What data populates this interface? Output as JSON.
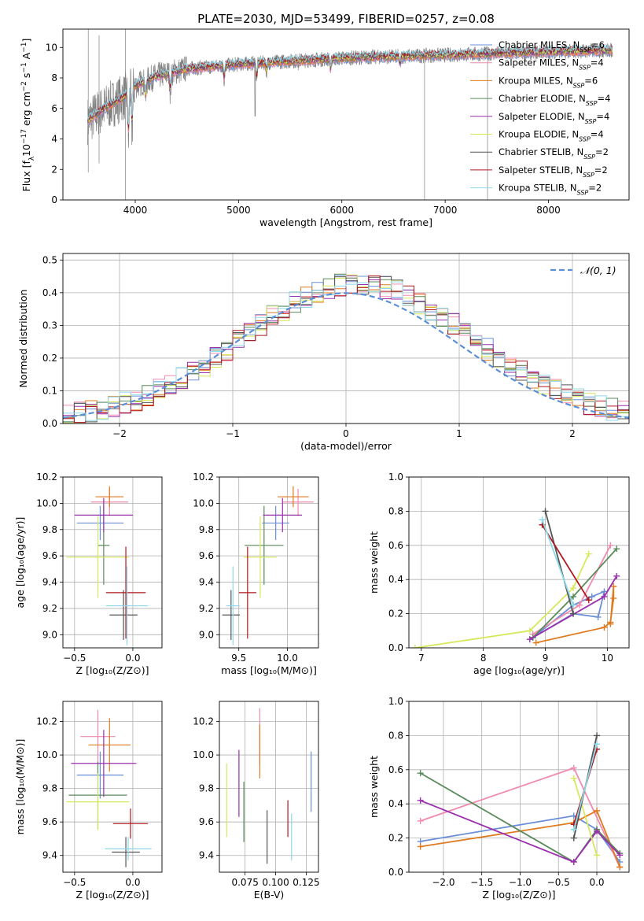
{
  "figure": {
    "title": "PLATE=2030, MJD=53499, FIBERID=0257, z=0.08"
  },
  "colors": {
    "chabrier_miles": "#6b8fd6",
    "salpeter_miles": "#f08ab0",
    "kroupa_miles": "#e07b20",
    "chabrier_elodie": "#5a8a5a",
    "salpeter_elodie": "#9b2fae",
    "kroupa_elodie": "#d6e85c",
    "chabrier_stelib": "#555555",
    "salpeter_stelib": "#b0171f",
    "kroupa_stelib": "#8dd8e8",
    "data": "#808080",
    "normal": "#5b8fd6"
  },
  "chart_data": [
    {
      "id": "spectrum",
      "type": "line",
      "xlabel": "wavelength [Angstrom, rest frame]",
      "ylabel": "Flux [f$_\\lambda$10$^{-17}$ erg cm$^{-2}$ s$^{-1}$ A$^{-1}$]",
      "xlim": [
        3300,
        8780
      ],
      "ylim": [
        0,
        11.2
      ],
      "xticks": [
        4000,
        5000,
        6000,
        7000,
        8000
      ],
      "yticks": [
        0,
        2,
        4,
        6,
        8,
        10
      ],
      "legend": [
        {
          "label": "Chabrier MILES, N",
          "sub": "SSP",
          "tail": "=6"
        },
        {
          "label": "Salpeter MILES, N",
          "sub": "SSP",
          "tail": "=4"
        },
        {
          "label": "Kroupa MILES, N",
          "sub": "SSP",
          "tail": "=6"
        },
        {
          "label": "Chabrier ELODIE, N",
          "sub": "SSP",
          "tail": "=4"
        },
        {
          "label": "Salpeter ELODIE, N",
          "sub": "SSP",
          "tail": "=4"
        },
        {
          "label": "Kroupa ELODIE, N",
          "sub": "SSP",
          "tail": "=4"
        },
        {
          "label": "Chabrier STELIB, N",
          "sub": "SSP",
          "tail": "=2"
        },
        {
          "label": "Salpeter STELIB, N",
          "sub": "SSP",
          "tail": "=2"
        },
        {
          "label": "Kroupa STELIB, N",
          "sub": "SSP",
          "tail": "=2"
        }
      ],
      "continuum": [
        [
          3540,
          5.2
        ],
        [
          3700,
          6.0
        ],
        [
          3900,
          6.8
        ],
        [
          4000,
          7.5
        ],
        [
          4200,
          8.1
        ],
        [
          4500,
          8.6
        ],
        [
          5000,
          8.9
        ],
        [
          5500,
          9.1
        ],
        [
          6000,
          9.3
        ],
        [
          6500,
          9.4
        ],
        [
          7000,
          9.5
        ],
        [
          7500,
          9.6
        ],
        [
          8000,
          9.7
        ],
        [
          8500,
          9.8
        ]
      ]
    },
    {
      "id": "residuals",
      "type": "line",
      "xlabel": "(data-model)/error",
      "ylabel": "Normed distribution",
      "xlim": [
        -2.5,
        2.5
      ],
      "ylim": [
        0,
        0.52
      ],
      "xticks": [
        -2,
        -1,
        0,
        1,
        2
      ],
      "yticks": [
        0.0,
        0.1,
        0.2,
        0.3,
        0.4,
        0.5
      ],
      "legend": "𝒩(0, 1)",
      "bin_width": 0.1
    },
    {
      "id": "z_age",
      "type": "scatter",
      "xlabel": "Z [log₁₀(Z/Z⊙)]",
      "ylabel": "age  [log₁₀(age/yr)]",
      "xlim": [
        -0.6,
        0.25
      ],
      "ylim": [
        8.9,
        10.2
      ],
      "xticks": [
        -0.5,
        0.0
      ],
      "yticks": [
        9.0,
        9.2,
        9.4,
        9.6,
        9.8,
        10.0,
        10.2
      ],
      "points": [
        {
          "model": "chabrier_miles",
          "x": -0.28,
          "xerr": 0.2,
          "y": 9.85,
          "yerr": 0.13
        },
        {
          "model": "salpeter_miles",
          "x": -0.2,
          "xerr": 0.16,
          "y": 10.01,
          "yerr": 0.1
        },
        {
          "model": "kroupa_miles",
          "x": -0.2,
          "xerr": 0.12,
          "y": 10.05,
          "yerr": 0.08
        },
        {
          "model": "chabrier_elodie",
          "x": -0.25,
          "xerr": 0.05,
          "y": 9.68,
          "yerr": 0.3
        },
        {
          "model": "salpeter_elodie",
          "x": -0.25,
          "xerr": 0.25,
          "y": 9.91,
          "yerr": 0.13
        },
        {
          "model": "kroupa_elodie",
          "x": -0.3,
          "xerr": 0.27,
          "y": 9.59,
          "yerr": 0.31
        },
        {
          "model": "chabrier_stelib",
          "x": -0.08,
          "xerr": 0.12,
          "y": 9.15,
          "yerr": 0.19
        },
        {
          "model": "salpeter_stelib",
          "x": -0.06,
          "xerr": 0.17,
          "y": 9.32,
          "yerr": 0.35
        },
        {
          "model": "kroupa_stelib",
          "x": -0.05,
          "xerr": 0.18,
          "y": 9.22,
          "yerr": 0.3
        }
      ]
    },
    {
      "id": "mass_age",
      "type": "scatter",
      "xlabel": "mass [log₁₀(M/M⊙)]",
      "ylabel": "",
      "xlim": [
        9.3,
        10.32
      ],
      "ylim": [
        8.9,
        10.2
      ],
      "xticks": [
        9.5,
        10.0
      ],
      "yticks": [
        9.0,
        9.2,
        9.4,
        9.6,
        9.8,
        10.0,
        10.2
      ],
      "points": [
        {
          "model": "chabrier_miles",
          "x": 9.88,
          "xerr": 0.14,
          "y": 9.85,
          "yerr": 0.13
        },
        {
          "model": "salpeter_miles",
          "x": 10.11,
          "xerr": 0.16,
          "y": 10.01,
          "yerr": 0.1
        },
        {
          "model": "kroupa_miles",
          "x": 10.06,
          "xerr": 0.16,
          "y": 10.05,
          "yerr": 0.08
        },
        {
          "model": "chabrier_elodie",
          "x": 9.76,
          "xerr": 0.2,
          "y": 9.68,
          "yerr": 0.3
        },
        {
          "model": "salpeter_elodie",
          "x": 9.95,
          "xerr": 0.2,
          "y": 9.91,
          "yerr": 0.13
        },
        {
          "model": "kroupa_elodie",
          "x": 9.72,
          "xerr": 0.17,
          "y": 9.59,
          "yerr": 0.31
        },
        {
          "model": "chabrier_stelib",
          "x": 9.42,
          "xerr": 0.09,
          "y": 9.15,
          "yerr": 0.19
        },
        {
          "model": "salpeter_stelib",
          "x": 9.59,
          "xerr": 0.09,
          "y": 9.32,
          "yerr": 0.35
        },
        {
          "model": "kroupa_stelib",
          "x": 9.44,
          "xerr": 0.07,
          "y": 9.22,
          "yerr": 0.3
        }
      ]
    },
    {
      "id": "age_weight",
      "type": "line",
      "xlabel": "age  [log₁₀(age/yr)]",
      "ylabel": "mass weight",
      "xlim": [
        6.8,
        10.35
      ],
      "ylim": [
        0,
        1
      ],
      "xticks": [
        7,
        8,
        9,
        10
      ],
      "yticks": [
        0.0,
        0.2,
        0.4,
        0.6,
        0.8,
        1.0
      ],
      "series": [
        {
          "model": "chabrier_miles",
          "x": [
            8.8,
            9.45,
            9.85,
            9.95,
            9.75,
            9.45,
            8.8
          ],
          "y": [
            0.06,
            0.2,
            0.18,
            0.33,
            0.3,
            0.25,
            0.06
          ]
        },
        {
          "model": "salpeter_miles",
          "x": [
            8.8,
            9.55,
            10.05
          ],
          "y": [
            0.08,
            0.25,
            0.6
          ]
        },
        {
          "model": "kroupa_miles",
          "x": [
            8.85,
            9.95,
            10.05,
            10.1,
            10.1,
            10.05
          ],
          "y": [
            0.03,
            0.12,
            0.15,
            0.29,
            0.36,
            0.14
          ]
        },
        {
          "model": "chabrier_elodie",
          "x": [
            8.8,
            9.45,
            10.15
          ],
          "y": [
            0.06,
            0.3,
            0.58
          ]
        },
        {
          "model": "salpeter_elodie",
          "x": [
            8.75,
            9.95,
            10.15
          ],
          "y": [
            0.05,
            0.3,
            0.42
          ]
        },
        {
          "model": "kroupa_elodie",
          "x": [
            6.9,
            8.75,
            9.45,
            9.7
          ],
          "y": [
            0.0,
            0.1,
            0.35,
            0.55
          ]
        },
        {
          "model": "chabrier_stelib",
          "x": [
            9.0,
            9.45
          ],
          "y": [
            0.8,
            0.2
          ]
        },
        {
          "model": "salpeter_stelib",
          "x": [
            8.95,
            9.7
          ],
          "y": [
            0.72,
            0.28
          ]
        },
        {
          "model": "kroupa_stelib",
          "x": [
            8.95,
            9.45
          ],
          "y": [
            0.75,
            0.25
          ]
        }
      ]
    },
    {
      "id": "z_mass",
      "type": "scatter",
      "xlabel": "Z [log₁₀(Z/Z⊙)]",
      "ylabel": "mass [log₁₀(M/M⊙)]",
      "xlim": [
        -0.6,
        0.25
      ],
      "ylim": [
        9.3,
        10.32
      ],
      "xticks": [
        -0.5,
        0.0
      ],
      "yticks": [
        9.4,
        9.6,
        9.8,
        10.0,
        10.2
      ],
      "points": [
        {
          "model": "chabrier_miles",
          "x": -0.28,
          "xerr": 0.2,
          "y": 9.88,
          "yerr": 0.14
        },
        {
          "model": "salpeter_miles",
          "x": -0.3,
          "xerr": 0.15,
          "y": 10.11,
          "yerr": 0.16
        },
        {
          "model": "kroupa_miles",
          "x": -0.2,
          "xerr": 0.18,
          "y": 10.06,
          "yerr": 0.16
        },
        {
          "model": "chabrier_elodie",
          "x": -0.3,
          "xerr": 0.25,
          "y": 9.76,
          "yerr": 0.2
        },
        {
          "model": "salpeter_elodie",
          "x": -0.25,
          "xerr": 0.28,
          "y": 9.95,
          "yerr": 0.2
        },
        {
          "model": "kroupa_elodie",
          "x": -0.3,
          "xerr": 0.27,
          "y": 9.72,
          "yerr": 0.17
        },
        {
          "model": "chabrier_stelib",
          "x": -0.06,
          "xerr": 0.12,
          "y": 9.42,
          "yerr": 0.09
        },
        {
          "model": "salpeter_stelib",
          "x": -0.02,
          "xerr": 0.15,
          "y": 9.59,
          "yerr": 0.09
        },
        {
          "model": "kroupa_stelib",
          "x": -0.04,
          "xerr": 0.2,
          "y": 9.44,
          "yerr": 0.07
        }
      ]
    },
    {
      "id": "ebv_mass",
      "type": "scatter",
      "xlabel": "E(B-V)",
      "ylabel": "",
      "xlim": [
        0.054,
        0.135
      ],
      "ylim": [
        9.3,
        10.32
      ],
      "xticks": [
        0.075,
        0.1,
        0.125
      ],
      "yticks": [
        9.4,
        9.6,
        9.8,
        10.0,
        10.2
      ],
      "tick_labels": [
        "0.075",
        "0.100",
        "0.125"
      ],
      "points": [
        {
          "model": "chabrier_miles",
          "x": 0.129,
          "y": 9.84,
          "yerr": 0.18
        },
        {
          "model": "salpeter_miles",
          "x": 0.087,
          "y": 10.11,
          "yerr": 0.17
        },
        {
          "model": "kroupa_miles",
          "x": 0.087,
          "y": 10.02,
          "yerr": 0.16
        },
        {
          "model": "chabrier_elodie",
          "x": 0.074,
          "y": 9.66,
          "yerr": 0.18
        },
        {
          "model": "salpeter_elodie",
          "x": 0.07,
          "y": 9.83,
          "yerr": 0.2
        },
        {
          "model": "kroupa_elodie",
          "x": 0.06,
          "y": 9.73,
          "yerr": 0.22
        },
        {
          "model": "chabrier_stelib",
          "x": 0.093,
          "y": 9.51,
          "yerr": 0.16
        },
        {
          "model": "salpeter_stelib",
          "x": 0.11,
          "y": 9.62,
          "yerr": 0.11
        },
        {
          "model": "kroupa_stelib",
          "x": 0.113,
          "y": 9.51,
          "yerr": 0.14
        }
      ]
    },
    {
      "id": "z_weight",
      "type": "line",
      "xlabel": "Z [log₁₀(Z/Z⊙)]",
      "ylabel": "mass weight",
      "xlim": [
        -2.45,
        0.42
      ],
      "ylim": [
        0,
        1
      ],
      "xticks": [
        -2.0,
        -1.5,
        -1.0,
        -0.5,
        0.0
      ],
      "yticks": [
        0.0,
        0.2,
        0.4,
        0.6,
        0.8,
        1.0
      ],
      "series": [
        {
          "model": "chabrier_miles",
          "x": [
            -2.3,
            -0.3,
            0.0,
            0.3
          ],
          "y": [
            0.18,
            0.33,
            0.25,
            0.06
          ]
        },
        {
          "model": "salpeter_miles",
          "x": [
            -2.3,
            -0.3,
            0.3
          ],
          "y": [
            0.3,
            0.61,
            0.03
          ]
        },
        {
          "model": "kroupa_miles",
          "x": [
            -2.3,
            -0.3,
            0.0,
            0.3
          ],
          "y": [
            0.15,
            0.29,
            0.36,
            0.03
          ]
        },
        {
          "model": "chabrier_elodie",
          "x": [
            -2.3,
            -0.3,
            0.0,
            0.3
          ],
          "y": [
            0.58,
            0.06,
            0.25,
            0.11
          ]
        },
        {
          "model": "salpeter_elodie",
          "x": [
            -2.3,
            -0.3,
            0.0,
            0.3
          ],
          "y": [
            0.42,
            0.06,
            0.24,
            0.1
          ]
        },
        {
          "model": "kroupa_elodie",
          "x": [
            -0.3,
            0.0
          ],
          "y": [
            0.55,
            0.1
          ]
        },
        {
          "model": "chabrier_stelib",
          "x": [
            -0.3,
            0.0
          ],
          "y": [
            0.2,
            0.8
          ]
        },
        {
          "model": "salpeter_stelib",
          "x": [
            -0.3,
            0.0
          ],
          "y": [
            0.28,
            0.72
          ]
        },
        {
          "model": "kroupa_stelib",
          "x": [
            -0.3,
            0.0
          ],
          "y": [
            0.25,
            0.75
          ]
        }
      ]
    }
  ]
}
